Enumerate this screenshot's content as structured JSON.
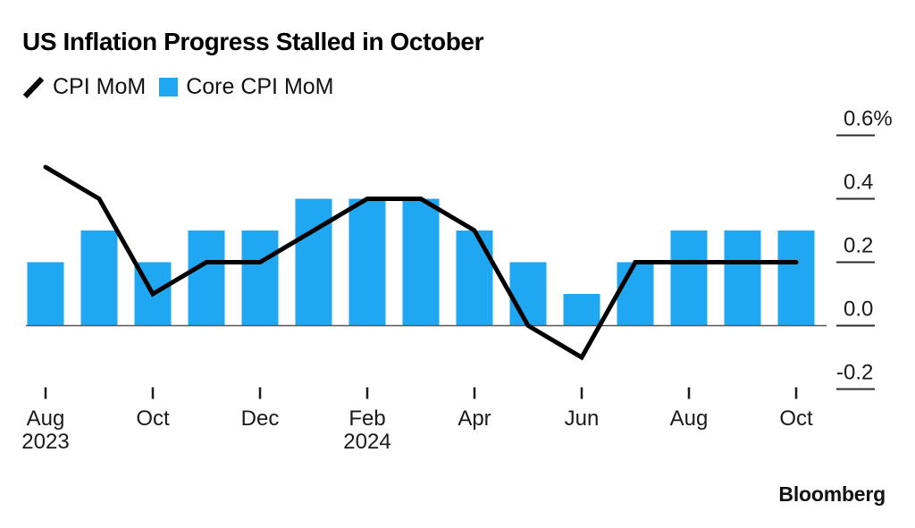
{
  "header": {
    "title": "US Inflation Progress Stalled in October"
  },
  "footer": {
    "brand": "Bloomberg"
  },
  "colors": {
    "bar": "#1FA8F1",
    "line": "#000000",
    "baseline": "#5A5753",
    "tick": "#2b2b2b",
    "text": "#1a1a1a",
    "background": "#ffffff"
  },
  "chart_data": {
    "type": "combo",
    "title": "US Inflation Progress Stalled in October",
    "unit": "%",
    "categories": [
      "Aug 2023",
      "Sep 2023",
      "Oct 2023",
      "Nov 2023",
      "Dec 2023",
      "Jan 2024",
      "Feb 2024",
      "Mar 2024",
      "Apr 2024",
      "May 2024",
      "Jun 2024",
      "Jul 2024",
      "Aug 2024",
      "Sep 2024",
      "Oct 2024"
    ],
    "series": [
      {
        "name": "CPI MoM",
        "render": "line",
        "color": "#000000",
        "values": [
          0.5,
          0.4,
          0.1,
          0.2,
          0.2,
          0.3,
          0.4,
          0.4,
          0.3,
          0.0,
          -0.1,
          0.2,
          0.2,
          0.2,
          0.2
        ]
      },
      {
        "name": "Core CPI MoM",
        "render": "bar",
        "color": "#1FA8F1",
        "values": [
          0.2,
          0.3,
          0.2,
          0.3,
          0.3,
          0.4,
          0.4,
          0.4,
          0.3,
          0.2,
          0.1,
          0.2,
          0.3,
          0.3,
          0.3
        ]
      }
    ],
    "y_ticks": [
      {
        "value": 0.6,
        "label": "0.6%"
      },
      {
        "value": 0.4,
        "label": "0.4"
      },
      {
        "value": 0.2,
        "label": "0.2"
      },
      {
        "value": 0.0,
        "label": "0.0"
      },
      {
        "value": -0.2,
        "label": "-0.2"
      }
    ],
    "x_ticks": [
      {
        "index": 0,
        "lines": [
          "Aug",
          "2023"
        ]
      },
      {
        "index": 2,
        "lines": [
          "Oct"
        ]
      },
      {
        "index": 4,
        "lines": [
          "Dec"
        ]
      },
      {
        "index": 6,
        "lines": [
          "Feb",
          "2024"
        ]
      },
      {
        "index": 8,
        "lines": [
          "Apr"
        ]
      },
      {
        "index": 10,
        "lines": [
          "Jun"
        ]
      },
      {
        "index": 12,
        "lines": [
          "Aug"
        ]
      },
      {
        "index": 14,
        "lines": [
          "Oct"
        ]
      }
    ],
    "ylim": [
      -0.3,
      0.7
    ],
    "grid": false,
    "axis_side": "right",
    "legend_position": "top-left"
  }
}
